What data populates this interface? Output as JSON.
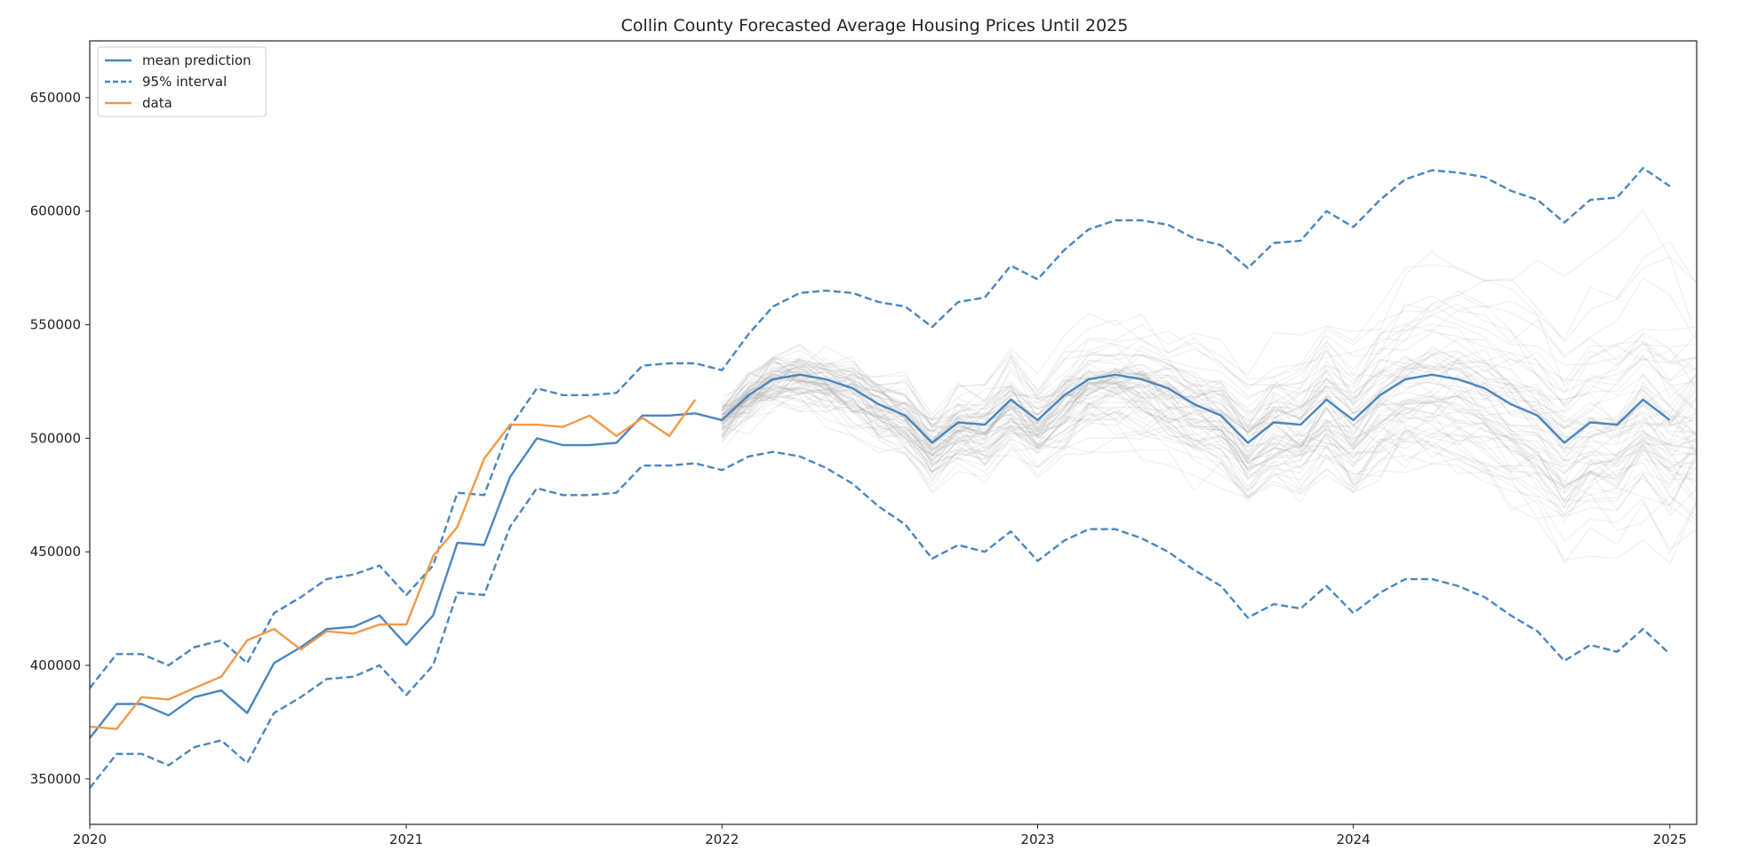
{
  "chart_data": {
    "type": "line",
    "title": "Collin County Forecasted Average Housing Prices Until 2025",
    "xlabel": "",
    "ylabel": "",
    "xlim": [
      "2020-01-01",
      "2025-02-01"
    ],
    "ylim": [
      330000,
      675000
    ],
    "grid": false,
    "legend_position": "top-left",
    "x_ticks": [
      "2020",
      "2021",
      "2022",
      "2023",
      "2024",
      "2025"
    ],
    "y_ticks": [
      350000,
      400000,
      450000,
      500000,
      550000,
      600000,
      650000
    ],
    "legend": [
      {
        "label": "mean prediction",
        "style": "solid",
        "color": "#4a86c0"
      },
      {
        "label": "95% interval",
        "style": "dashed",
        "color": "#4a86c0"
      },
      {
        "label": "data",
        "style": "solid",
        "color": "#f2994a"
      }
    ],
    "series": [
      {
        "name": "mean prediction",
        "color": "#4a86c0",
        "style": "solid",
        "x": [
          "2020-01-01",
          "2020-02-01",
          "2020-03-01",
          "2020-04-01",
          "2020-05-01",
          "2020-06-01",
          "2020-07-01",
          "2020-08-01",
          "2020-09-01",
          "2020-10-01",
          "2020-11-01",
          "2020-12-01",
          "2021-01-01",
          "2021-02-01",
          "2021-03-01",
          "2021-04-01",
          "2021-05-01",
          "2021-06-01",
          "2021-07-01",
          "2021-08-01",
          "2021-09-01",
          "2021-10-01",
          "2021-11-01",
          "2021-12-01",
          "2022-01-01",
          "2022-02-01",
          "2022-03-01",
          "2022-04-01",
          "2022-05-01",
          "2022-06-01",
          "2022-07-01",
          "2022-08-01",
          "2022-09-01",
          "2022-10-01",
          "2022-11-01",
          "2022-12-01",
          "2023-01-01",
          "2023-02-01",
          "2023-03-01",
          "2023-04-01",
          "2023-05-01",
          "2023-06-01",
          "2023-07-01",
          "2023-08-01",
          "2023-09-01",
          "2023-10-01",
          "2023-11-01",
          "2023-12-01",
          "2024-01-01",
          "2024-02-01",
          "2024-03-01",
          "2024-04-01",
          "2024-05-01",
          "2024-06-01",
          "2024-07-01",
          "2024-08-01",
          "2024-09-01",
          "2024-10-01",
          "2024-11-01",
          "2024-12-01",
          "2025-01-01"
        ],
        "values": [
          368000,
          383000,
          383000,
          378000,
          386000,
          389000,
          379000,
          401000,
          408000,
          416000,
          417000,
          422000,
          409000,
          422000,
          454000,
          453000,
          483000,
          500000,
          497000,
          497000,
          498000,
          510000,
          510000,
          511000,
          508000,
          519000,
          526000,
          528000,
          526000,
          522000,
          515000,
          510000,
          498000,
          507000,
          506000,
          517000,
          508000,
          519000,
          526000,
          528000,
          526000,
          522000,
          515000,
          510000,
          498000,
          507000,
          506000,
          517000,
          508000,
          519000,
          526000,
          528000,
          526000,
          522000,
          515000,
          510000,
          498000,
          507000,
          506000,
          517000,
          508000
        ]
      },
      {
        "name": "95% interval",
        "color": "#4a86c0",
        "style": "dashed",
        "x": [
          "2020-01-01",
          "2020-02-01",
          "2020-03-01",
          "2020-04-01",
          "2020-05-01",
          "2020-06-01",
          "2020-07-01",
          "2020-08-01",
          "2020-09-01",
          "2020-10-01",
          "2020-11-01",
          "2020-12-01",
          "2021-01-01",
          "2021-02-01",
          "2021-03-01",
          "2021-04-01",
          "2021-05-01",
          "2021-06-01",
          "2021-07-01",
          "2021-08-01",
          "2021-09-01",
          "2021-10-01",
          "2021-11-01",
          "2021-12-01",
          "2022-01-01",
          "2022-02-01",
          "2022-03-01",
          "2022-04-01",
          "2022-05-01",
          "2022-06-01",
          "2022-07-01",
          "2022-08-01",
          "2022-09-01",
          "2022-10-01",
          "2022-11-01",
          "2022-12-01",
          "2023-01-01",
          "2023-02-01",
          "2023-03-01",
          "2023-04-01",
          "2023-05-01",
          "2023-06-01",
          "2023-07-01",
          "2023-08-01",
          "2023-09-01",
          "2023-10-01",
          "2023-11-01",
          "2023-12-01",
          "2024-01-01",
          "2024-02-01",
          "2024-03-01",
          "2024-04-01",
          "2024-05-01",
          "2024-06-01",
          "2024-07-01",
          "2024-08-01",
          "2024-09-01",
          "2024-10-01",
          "2024-11-01",
          "2024-12-01",
          "2025-01-01"
        ],
        "values": [
          390000,
          405000,
          405000,
          400000,
          408000,
          411000,
          401000,
          423000,
          430000,
          438000,
          440000,
          444000,
          431000,
          444000,
          476000,
          475000,
          505000,
          522000,
          519000,
          519000,
          520000,
          532000,
          533000,
          533000,
          530000,
          546000,
          558000,
          564000,
          565000,
          564000,
          560000,
          558000,
          549000,
          560000,
          562000,
          576000,
          570000,
          583000,
          592000,
          596000,
          596000,
          594000,
          588000,
          585000,
          575000,
          586000,
          587000,
          600000,
          593000,
          605000,
          614000,
          618000,
          617000,
          615000,
          609000,
          605000,
          595000,
          605000,
          606000,
          619000,
          611000
        ]
      },
      {
        "name": "95% interval",
        "color": "#4a86c0",
        "style": "dashed",
        "x": [
          "2020-01-01",
          "2020-02-01",
          "2020-03-01",
          "2020-04-01",
          "2020-05-01",
          "2020-06-01",
          "2020-07-01",
          "2020-08-01",
          "2020-09-01",
          "2020-10-01",
          "2020-11-01",
          "2020-12-01",
          "2021-01-01",
          "2021-02-01",
          "2021-03-01",
          "2021-04-01",
          "2021-05-01",
          "2021-06-01",
          "2021-07-01",
          "2021-08-01",
          "2021-09-01",
          "2021-10-01",
          "2021-11-01",
          "2021-12-01",
          "2022-01-01",
          "2022-02-01",
          "2022-03-01",
          "2022-04-01",
          "2022-05-01",
          "2022-06-01",
          "2022-07-01",
          "2022-08-01",
          "2022-09-01",
          "2022-10-01",
          "2022-11-01",
          "2022-12-01",
          "2023-01-01",
          "2023-02-01",
          "2023-03-01",
          "2023-04-01",
          "2023-05-01",
          "2023-06-01",
          "2023-07-01",
          "2023-08-01",
          "2023-09-01",
          "2023-10-01",
          "2023-11-01",
          "2023-12-01",
          "2024-01-01",
          "2024-02-01",
          "2024-03-01",
          "2024-04-01",
          "2024-05-01",
          "2024-06-01",
          "2024-07-01",
          "2024-08-01",
          "2024-09-01",
          "2024-10-01",
          "2024-11-01",
          "2024-12-01",
          "2025-01-01"
        ],
        "values": [
          346000,
          361000,
          361000,
          356000,
          364000,
          367000,
          357000,
          379000,
          386000,
          394000,
          395000,
          400000,
          387000,
          400000,
          432000,
          431000,
          461000,
          478000,
          475000,
          475000,
          476000,
          488000,
          488000,
          489000,
          486000,
          492000,
          494000,
          492000,
          487000,
          480000,
          470000,
          462000,
          447000,
          453000,
          450000,
          459000,
          446000,
          455000,
          460000,
          460000,
          456000,
          450000,
          442000,
          435000,
          421000,
          427000,
          425000,
          435000,
          423000,
          432000,
          438000,
          438000,
          435000,
          430000,
          422000,
          415000,
          402000,
          409000,
          406000,
          416000,
          405000
        ]
      },
      {
        "name": "data",
        "color": "#f2994a",
        "style": "solid",
        "x": [
          "2020-01-01",
          "2020-02-01",
          "2020-03-01",
          "2020-04-01",
          "2020-05-01",
          "2020-06-01",
          "2020-07-01",
          "2020-08-01",
          "2020-09-01",
          "2020-10-01",
          "2020-11-01",
          "2020-12-01",
          "2021-01-01",
          "2021-02-01",
          "2021-03-01",
          "2021-04-01",
          "2021-05-01",
          "2021-06-01",
          "2021-07-01",
          "2021-08-01",
          "2021-09-01",
          "2021-10-01",
          "2021-11-01",
          "2021-12-01"
        ],
        "values": [
          373000,
          372000,
          386000,
          385000,
          390000,
          395000,
          411000,
          416000,
          407000,
          415000,
          414000,
          418000,
          418000,
          448000,
          461000,
          491000,
          506000,
          506000,
          505000,
          510000,
          501000,
          509000,
          501000,
          517000
        ]
      }
    ]
  }
}
